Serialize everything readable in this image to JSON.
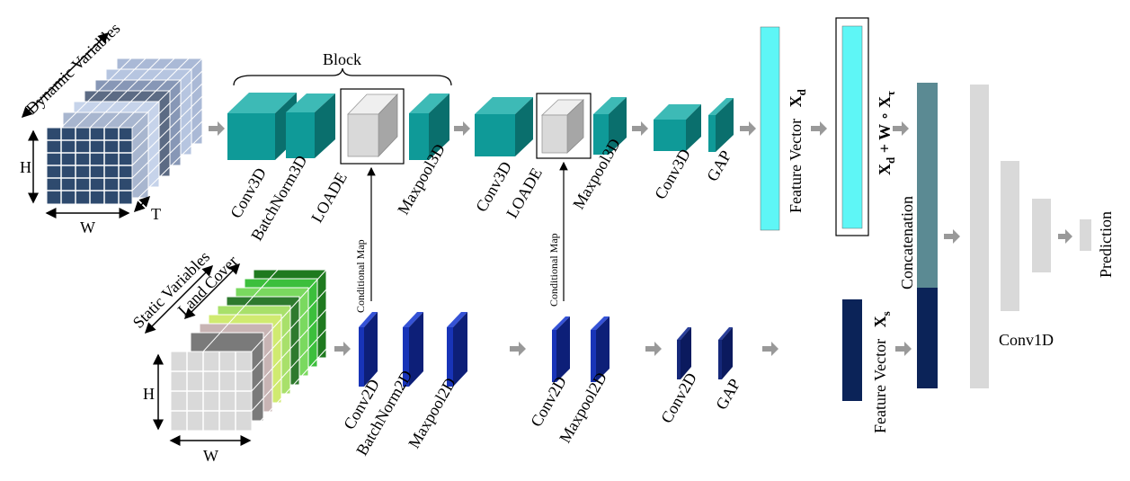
{
  "labels": {
    "dynamic_variables": "Dynamic  Variables",
    "static_variables": "Static Variables",
    "land_cover": "Land Cover",
    "h": "H",
    "w": "W",
    "t": "T",
    "block": "Block",
    "conv3d": "Conv3D",
    "batchnorm3d": "BatchNorm3D",
    "loade": "LOADE",
    "maxpool3d": "Maxpool3D",
    "gap": "GAP",
    "conv2d": "Conv2D",
    "batchnorm2d": "BatchNorm2D",
    "maxpool2d": "Maxpool2D",
    "conditional_map": "Conditional  Map",
    "feature_vector": "Feature Vector",
    "xd": "X",
    "xd_sub": "d",
    "xs": "X",
    "xs_sub": "s",
    "fused_xd": "X",
    "fused_xd_sub": "d",
    "fused_plus_w": " + W",
    "fused_circ": " ∘ ",
    "fused_xtau": "X",
    "fused_xtau_sub": "τ",
    "concatenation": "Concatenation",
    "conv1d": "Conv1D",
    "prediction": "Prediction"
  },
  "colors": {
    "dynamic_grid": "#2e4a6e",
    "static_grid": "#d9d9d9",
    "teal_front": "#0f9a98",
    "teal_top": "#3dbab6",
    "teal_side": "#0a6f6d",
    "blue_front": "#1834b8",
    "blue_side": "#0d1f78",
    "cyan_vector": "#5ef6f6",
    "navy_vector": "#0b2358",
    "concat_top": "#5b8a93",
    "gray_layers": "#d9d9d9",
    "arrow": "#999999"
  }
}
